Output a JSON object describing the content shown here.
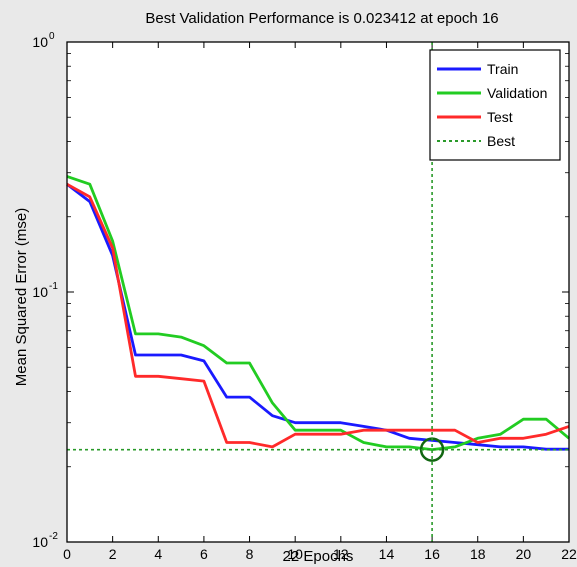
{
  "chart_data": {
    "type": "line",
    "title": "Best Validation Performance is 0.023412 at epoch 16",
    "xlabel": "22 Epochs",
    "ylabel": "Mean Squared Error  (mse)",
    "xlim": [
      0,
      22
    ],
    "ylim": [
      0.01,
      1
    ],
    "yscale": "log",
    "x_ticks": [
      0,
      2,
      4,
      6,
      8,
      10,
      12,
      14,
      16,
      18,
      20,
      22
    ],
    "x_tick_labels": [
      "0",
      "2",
      "4",
      "6",
      "8",
      "10",
      "12",
      "14",
      "16",
      "18",
      "20",
      "22"
    ],
    "y_ticks": [
      {
        "value": 1,
        "base": "10",
        "exp": "0"
      },
      {
        "value": 0.1,
        "base": "10",
        "exp": "-1"
      },
      {
        "value": 0.01,
        "base": "10",
        "exp": "-2"
      }
    ],
    "grid": false,
    "legend_position": "top-right",
    "series": [
      {
        "name": "Train",
        "color": "#1a1aff",
        "style": "solid",
        "x": [
          0,
          1,
          2,
          3,
          4,
          5,
          6,
          7,
          8,
          9,
          10,
          11,
          12,
          13,
          14,
          15,
          16,
          17,
          18,
          19,
          20,
          21,
          22
        ],
        "y": [
          0.27,
          0.23,
          0.14,
          0.056,
          0.056,
          0.056,
          0.053,
          0.038,
          0.038,
          0.032,
          0.03,
          0.03,
          0.03,
          0.029,
          0.028,
          0.026,
          0.0255,
          0.025,
          0.0245,
          0.024,
          0.024,
          0.0235,
          0.0235
        ]
      },
      {
        "name": "Validation",
        "color": "#22cc22",
        "style": "solid",
        "x": [
          0,
          1,
          2,
          3,
          4,
          5,
          6,
          7,
          8,
          9,
          10,
          11,
          12,
          13,
          14,
          15,
          16,
          17,
          18,
          19,
          20,
          21,
          22
        ],
        "y": [
          0.29,
          0.27,
          0.16,
          0.068,
          0.068,
          0.066,
          0.061,
          0.052,
          0.052,
          0.036,
          0.028,
          0.028,
          0.028,
          0.025,
          0.024,
          0.024,
          0.023412,
          0.024,
          0.026,
          0.027,
          0.031,
          0.031,
          0.026
        ]
      },
      {
        "name": "Test",
        "color": "#ff2a2a",
        "style": "solid",
        "x": [
          0,
          1,
          2,
          3,
          4,
          5,
          6,
          7,
          8,
          9,
          10,
          11,
          12,
          13,
          14,
          15,
          16,
          17,
          18,
          19,
          20,
          21,
          22
        ],
        "y": [
          0.27,
          0.24,
          0.15,
          0.046,
          0.046,
          0.045,
          0.044,
          0.025,
          0.025,
          0.024,
          0.027,
          0.027,
          0.027,
          0.028,
          0.028,
          0.028,
          0.028,
          0.028,
          0.025,
          0.026,
          0.026,
          0.027,
          0.029
        ]
      }
    ],
    "legend": [
      {
        "label": "Train",
        "color": "#1a1aff",
        "dash": false
      },
      {
        "label": "Validation",
        "color": "#22cc22",
        "dash": false
      },
      {
        "label": "Test",
        "color": "#ff2a2a",
        "dash": false
      },
      {
        "label": "Best",
        "color": "#2a9a2a",
        "dash": true
      }
    ],
    "best": {
      "epoch": 16,
      "value": 0.023412,
      "color": "#2a9a2a"
    }
  }
}
